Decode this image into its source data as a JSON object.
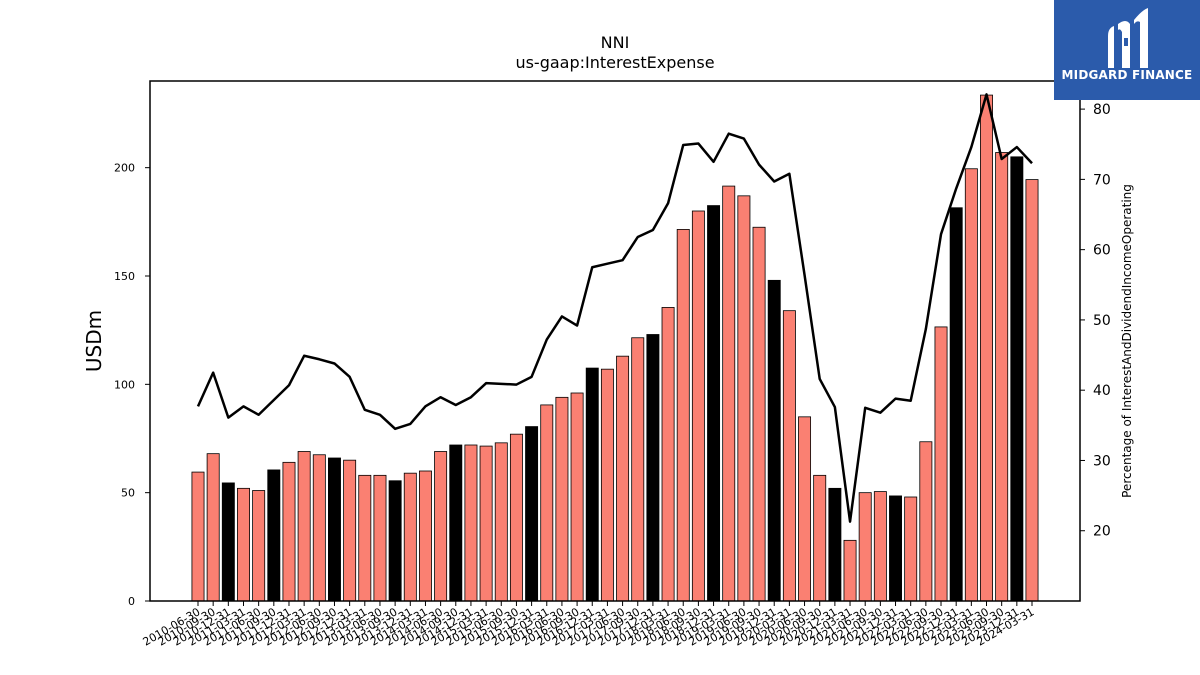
{
  "brand": {
    "name": "MIDGARD FINANCE",
    "bg_color": "#2b5bab"
  },
  "chart_data": {
    "type": "bar",
    "title": "NNI",
    "subtitle": "us-gaap:InterestExpense",
    "ylabel": "USDm",
    "y2label": "Percentage of InterestAndDividendIncomeOperating",
    "ylim": [
      0,
      240
    ],
    "y2lim": [
      10,
      84
    ],
    "yticks": [
      0,
      50,
      100,
      150,
      200
    ],
    "y2ticks": [
      20,
      30,
      40,
      50,
      60,
      70,
      80
    ],
    "bar_color": "#fa8072",
    "highlight_color": "#000000",
    "line_color": "#000000",
    "categories": [
      "2010-06-30",
      "2010-09-30",
      "2010-12-31",
      "2011-03-31",
      "2011-06-30",
      "2011-09-30",
      "2011-12-31",
      "2012-03-31",
      "2012-06-30",
      "2012-09-30",
      "2012-12-31",
      "2013-03-31",
      "2013-06-30",
      "2013-09-30",
      "2013-12-31",
      "2014-03-31",
      "2014-06-30",
      "2014-09-30",
      "2014-12-31",
      "2015-03-31",
      "2015-06-30",
      "2015-09-30",
      "2015-12-31",
      "2016-03-31",
      "2016-06-30",
      "2016-09-30",
      "2016-12-31",
      "2017-03-31",
      "2017-06-30",
      "2017-09-30",
      "2017-12-31",
      "2018-03-31",
      "2018-06-30",
      "2018-09-30",
      "2018-12-31",
      "2019-03-31",
      "2019-06-30",
      "2019-09-30",
      "2019-12-31",
      "2020-03-31",
      "2020-06-30",
      "2020-09-30",
      "2020-12-31",
      "2021-03-31",
      "2021-06-30",
      "2021-09-30",
      "2021-12-31",
      "2022-03-31",
      "2022-06-30",
      "2022-09-30",
      "2022-12-31",
      "2023-03-31",
      "2023-06-30",
      "2023-09-30",
      "2023-12-31",
      "2024-03-31"
    ],
    "tick_labels": [
      "2010-06-30",
      "2010-09-30",
      "2010-12-31",
      "2011-03-31",
      "2011-06-30",
      "2011-09-30",
      "2011-12-31",
      "2012-03-31",
      "2012-06-30",
      "2012-09-30",
      "2012-12-31",
      "2013-03-31",
      "2013-06-30",
      "2013-09-30",
      "2013-12-31",
      "2014-03-31",
      "2014-06-30",
      "2014-09-30",
      "2014-12-31",
      "2015-03-31",
      "2015-06-30",
      "2015-09-30",
      "2015-12-31",
      "2016-03-31",
      "2016-06-30",
      "2016-09-30",
      "2016-12-31",
      "2017-03-31",
      "2017-06-30",
      "2017-09-30",
      "2017-12-31",
      "2018-03-31",
      "2018-06-30",
      "2018-09-30",
      "2018-12-31",
      "2019-03-31",
      "2019-06-30",
      "2019-09-30",
      "2019-12-31",
      "2020-03-31",
      "2020-06-30",
      "2020-09-30",
      "2020-12-31",
      "2021-03-31",
      "2021-06-30",
      "2021-09-30",
      "2021-12-31",
      "2022-03-31",
      "2022-06-30",
      "2022-09-30",
      "2022-12-31",
      "2023-03-31",
      "2023-06-30",
      "2023-09-30",
      "2023-12-31",
      "2024-03-31"
    ],
    "highlighted": [
      2,
      5,
      9,
      13,
      17,
      22,
      26,
      30,
      34,
      38,
      42,
      46,
      50,
      54
    ],
    "bar_values": [
      59.5,
      68,
      54.5,
      52,
      51,
      60.5,
      64,
      69,
      67.5,
      66,
      65,
      58,
      58,
      55.5,
      59,
      60,
      69,
      72,
      72,
      71.5,
      73,
      77,
      80.5,
      90.5,
      94,
      96,
      107.5,
      107,
      113,
      121.5,
      123,
      135.5,
      171.5,
      180,
      182.5,
      191.5,
      187,
      172.5,
      148,
      134,
      85,
      58,
      52,
      28,
      50,
      50.5,
      48.5,
      48,
      73.5,
      126.5,
      181.5,
      199.5,
      233.5,
      207,
      205,
      194.5
    ],
    "line_values": [
      37.7,
      42.5,
      36.1,
      37.7,
      36.5,
      38.6,
      40.7,
      44.9,
      44.4,
      43.8,
      41.9,
      37.2,
      36.5,
      34.5,
      35.2,
      37.7,
      39,
      37.9,
      39,
      41,
      40.9,
      40.8,
      41.9,
      47.2,
      50.5,
      49.2,
      57.5,
      58,
      58.5,
      61.8,
      62.8,
      66.6,
      74.9,
      75.1,
      72.5,
      76.5,
      75.8,
      72.1,
      69.7,
      70.8,
      56.4,
      41.6,
      37.6,
      21.3,
      37.5,
      36.8,
      38.8,
      38.5,
      48.7,
      62.2,
      68.7,
      74.6,
      82.1,
      72.9,
      74.6,
      72.3
    ]
  }
}
